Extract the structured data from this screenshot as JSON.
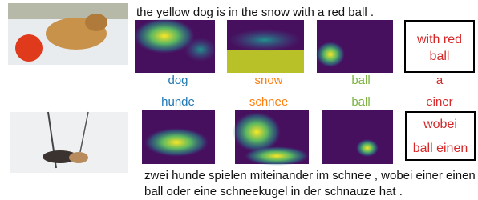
{
  "top": {
    "caption": "the yellow dog is in the snow with a red ball .",
    "words": [
      "dog",
      "snow",
      "ball",
      "a"
    ],
    "box_lines": [
      "with red",
      "ball"
    ]
  },
  "bottom": {
    "caption_lines": [
      "zwei hunde spielen miteinander im schnee , wobei einer einen",
      "ball oder eine schneekugel in der schnauze hat ."
    ],
    "words": [
      "hunde",
      "schnee",
      "ball",
      "einer"
    ],
    "box_lines": [
      "wobei",
      "ball einen"
    ]
  }
}
